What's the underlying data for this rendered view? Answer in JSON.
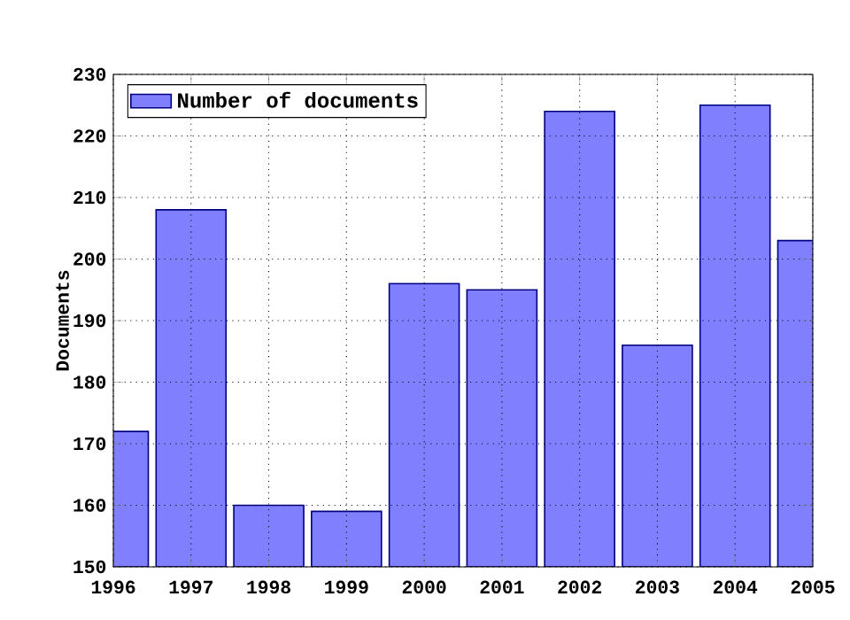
{
  "chart_data": {
    "type": "bar",
    "ylabel": "Documents",
    "x": [
      1996,
      1997,
      1998,
      1999,
      2000,
      2001,
      2002,
      2003,
      2004,
      2005
    ],
    "series": [
      {
        "name": "Number of documents",
        "color": "#8080ff",
        "values": [
          172,
          208,
          160,
          159,
          196,
          195,
          224,
          186,
          225,
          203
        ]
      }
    ],
    "xlim": [
      1996,
      2005
    ],
    "xticks": [
      1996,
      1997,
      1998,
      1999,
      2000,
      2001,
      2002,
      2003,
      2004,
      2005
    ],
    "ylim": [
      150,
      230
    ],
    "yticks": [
      150,
      160,
      170,
      180,
      190,
      200,
      210,
      220,
      230
    ],
    "grid": true,
    "legend": "top left"
  }
}
